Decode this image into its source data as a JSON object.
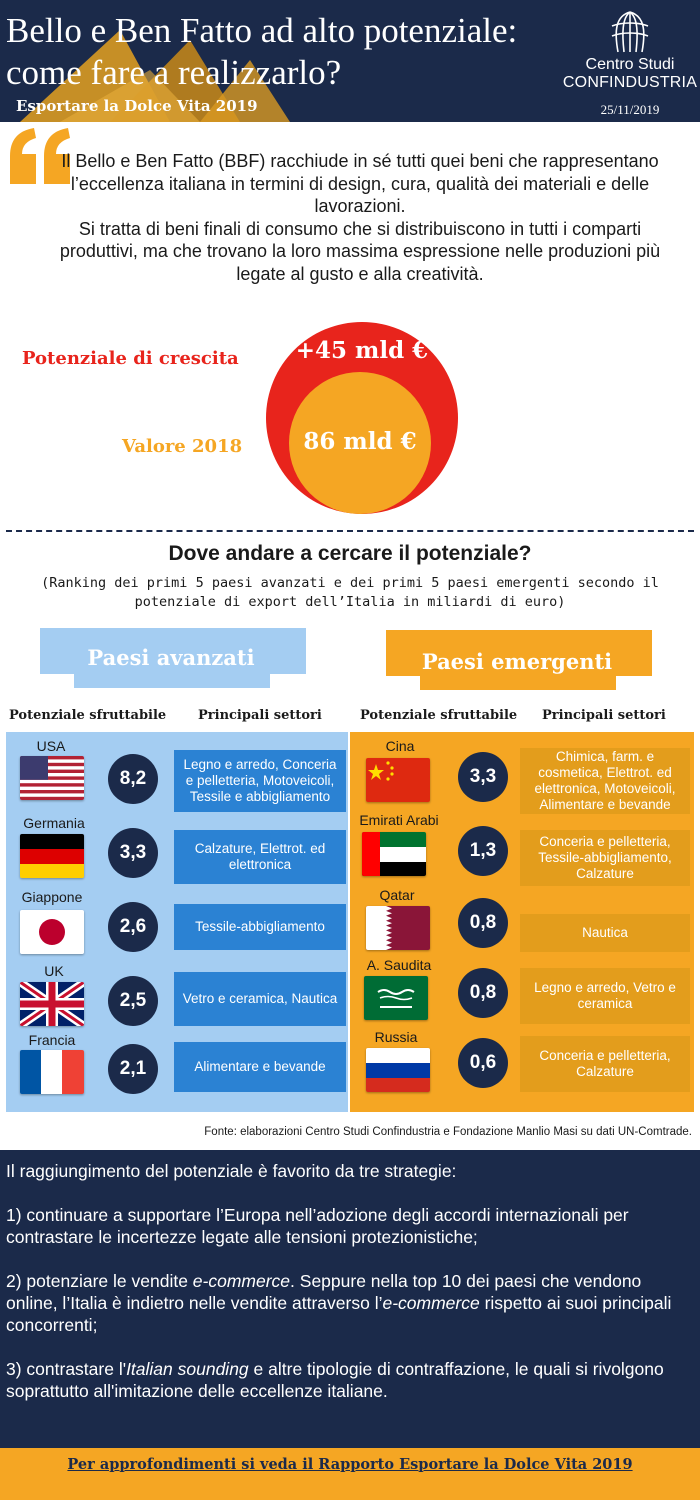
{
  "header": {
    "title_line1": "Bello e Ben Fatto ad alto potenziale:",
    "title_line2": "come fare a realizzarlo?",
    "subtitle": "Esportare la Dolce Vita 2019",
    "org_line1": "Centro Studi",
    "org_line2": "CONFINDUSTRIA",
    "date": "25/11/2019",
    "logo_icon": "confindustria-logo-icon"
  },
  "intro": {
    "quote_icon": "quote-icon",
    "paragraph1": "Il Bello e Ben Fatto (BBF) racchiude in sé tutti quei beni che rappresentano l’eccellenza italiana in termini di design, cura, qualità dei materiali e delle lavorazioni.",
    "paragraph2": "Si tratta di beni finali di consumo che si distribuiscono in tutti i comparti produttivi, ma che trovano la loro massima espressione nelle produzioni più legate al gusto e alla creatività."
  },
  "potential": {
    "growth_label": "Potenziale di crescita",
    "growth_value": "+45 mld €",
    "value_label": "Valore 2018",
    "value_value": "86 mld €",
    "colors": {
      "growth": "#e8241c",
      "value": "#f5a623"
    }
  },
  "ranking": {
    "title": "Dove andare a cercare il potenziale?",
    "subtitle": "(Ranking dei primi 5 paesi avanzati e dei primi 5 paesi emergenti secondo il potenziale di export dell’Italia in miliardi di euro)",
    "col_potential": "Potenziale sfruttabile",
    "col_sectors": "Principali settori",
    "advanced": {
      "title": "Paesi avanzati",
      "color": "#a4cdf2",
      "countries": [
        {
          "name": "USA",
          "flag": "usa-flag-icon",
          "value": "8,2",
          "sectors": "Legno e arredo, Conceria e pelletteria, Motoveicoli, Tessile e abbigliamento"
        },
        {
          "name": "Germania",
          "flag": "germany-flag-icon",
          "value": "3,3",
          "sectors": "Calzature, Elettrot. ed elettronica"
        },
        {
          "name": "Giappone",
          "flag": "japan-flag-icon",
          "value": "2,6",
          "sectors": "Tessile-abbigliamento"
        },
        {
          "name": "UK",
          "flag": "uk-flag-icon",
          "value": "2,5",
          "sectors": "Vetro e ceramica, Nautica"
        },
        {
          "name": "Francia",
          "flag": "france-flag-icon",
          "value": "2,1",
          "sectors": "Alimentare e bevande"
        }
      ]
    },
    "emerging": {
      "title": "Paesi emergenti",
      "color": "#f5a623",
      "countries": [
        {
          "name": "Cina",
          "flag": "china-flag-icon",
          "value": "3,3",
          "sectors": "Chimica, farm. e cosmetica, Elettrot. ed elettronica, Motoveicoli, Alimentare e bevande"
        },
        {
          "name": "Emirati Arabi",
          "flag": "uae-flag-icon",
          "value": "1,3",
          "sectors": "Conceria e pelletteria, Tessile-abbigliamento, Calzature"
        },
        {
          "name": "Qatar",
          "flag": "qatar-flag-icon",
          "value": "0,8",
          "sectors": "Nautica"
        },
        {
          "name": "A. Saudita",
          "flag": "saudi-flag-icon",
          "value": "0,8",
          "sectors": "Legno e arredo, Vetro e ceramica"
        },
        {
          "name": "Russia",
          "flag": "russia-flag-icon",
          "value": "0,6",
          "sectors": "Conceria e pelletteria, Calzature"
        }
      ]
    },
    "source": "Fonte: elaborazioni Centro Studi Confindustria e Fondazione Manlio Masi su dati UN-Comtrade."
  },
  "strategies": {
    "intro": "Il raggiungimento del potenziale è favorito da tre strategie:",
    "s1": "1) continuare a supportare l’Europa nell’adozione degli accordi internazionali per contrastare le incertezze legate alle tensioni protezionistiche;",
    "s2_a": "2) potenziare le vendite ",
    "s2_em1": "e-commerce",
    "s2_b": ". Seppure nella top 10 dei paesi che vendono online, l’Italia è indietro nelle vendite attraverso l’",
    "s2_em2": "e-commerce",
    "s2_c": " rispetto ai suoi principali concorrenti;",
    "s3_a": "3) contrastare l'",
    "s3_em": "Italian sounding",
    "s3_b": " e altre tipologie di contraffazione, le quali si rivolgono soprattutto all'imitazione delle eccellenze italiane."
  },
  "footer": {
    "link_text": "Per approfondimenti si veda il Rapporto Esportare la Dolce Vita 2019"
  }
}
